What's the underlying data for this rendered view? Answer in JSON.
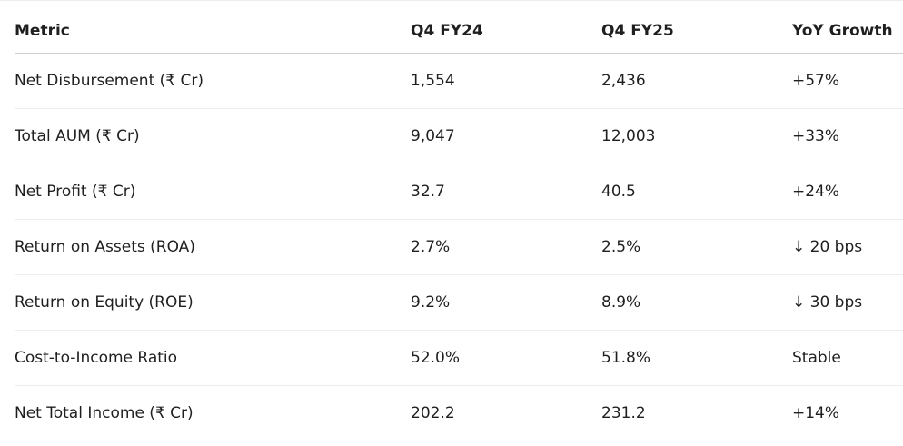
{
  "table": {
    "headers": [
      "Metric",
      "Q4 FY24",
      "Q4 FY25",
      "YoY Growth"
    ],
    "rows": [
      [
        "Net Disbursement (₹ Cr)",
        "1,554",
        "2,436",
        "+57%"
      ],
      [
        "Total AUM (₹ Cr)",
        "9,047",
        "12,003",
        "+33%"
      ],
      [
        "Net Profit (₹ Cr)",
        "32.7",
        "40.5",
        "+24%"
      ],
      [
        "Return on Assets (ROA)",
        "2.7%",
        "2.5%",
        "↓ 20 bps"
      ],
      [
        "Return on Equity (ROE)",
        "9.2%",
        "8.9%",
        "↓ 30 bps"
      ],
      [
        "Cost-to-Income Ratio",
        "52.0%",
        "51.8%",
        "Stable"
      ],
      [
        "Net Total Income (₹ Cr)",
        "202.2",
        "231.2",
        "+14%"
      ]
    ]
  }
}
